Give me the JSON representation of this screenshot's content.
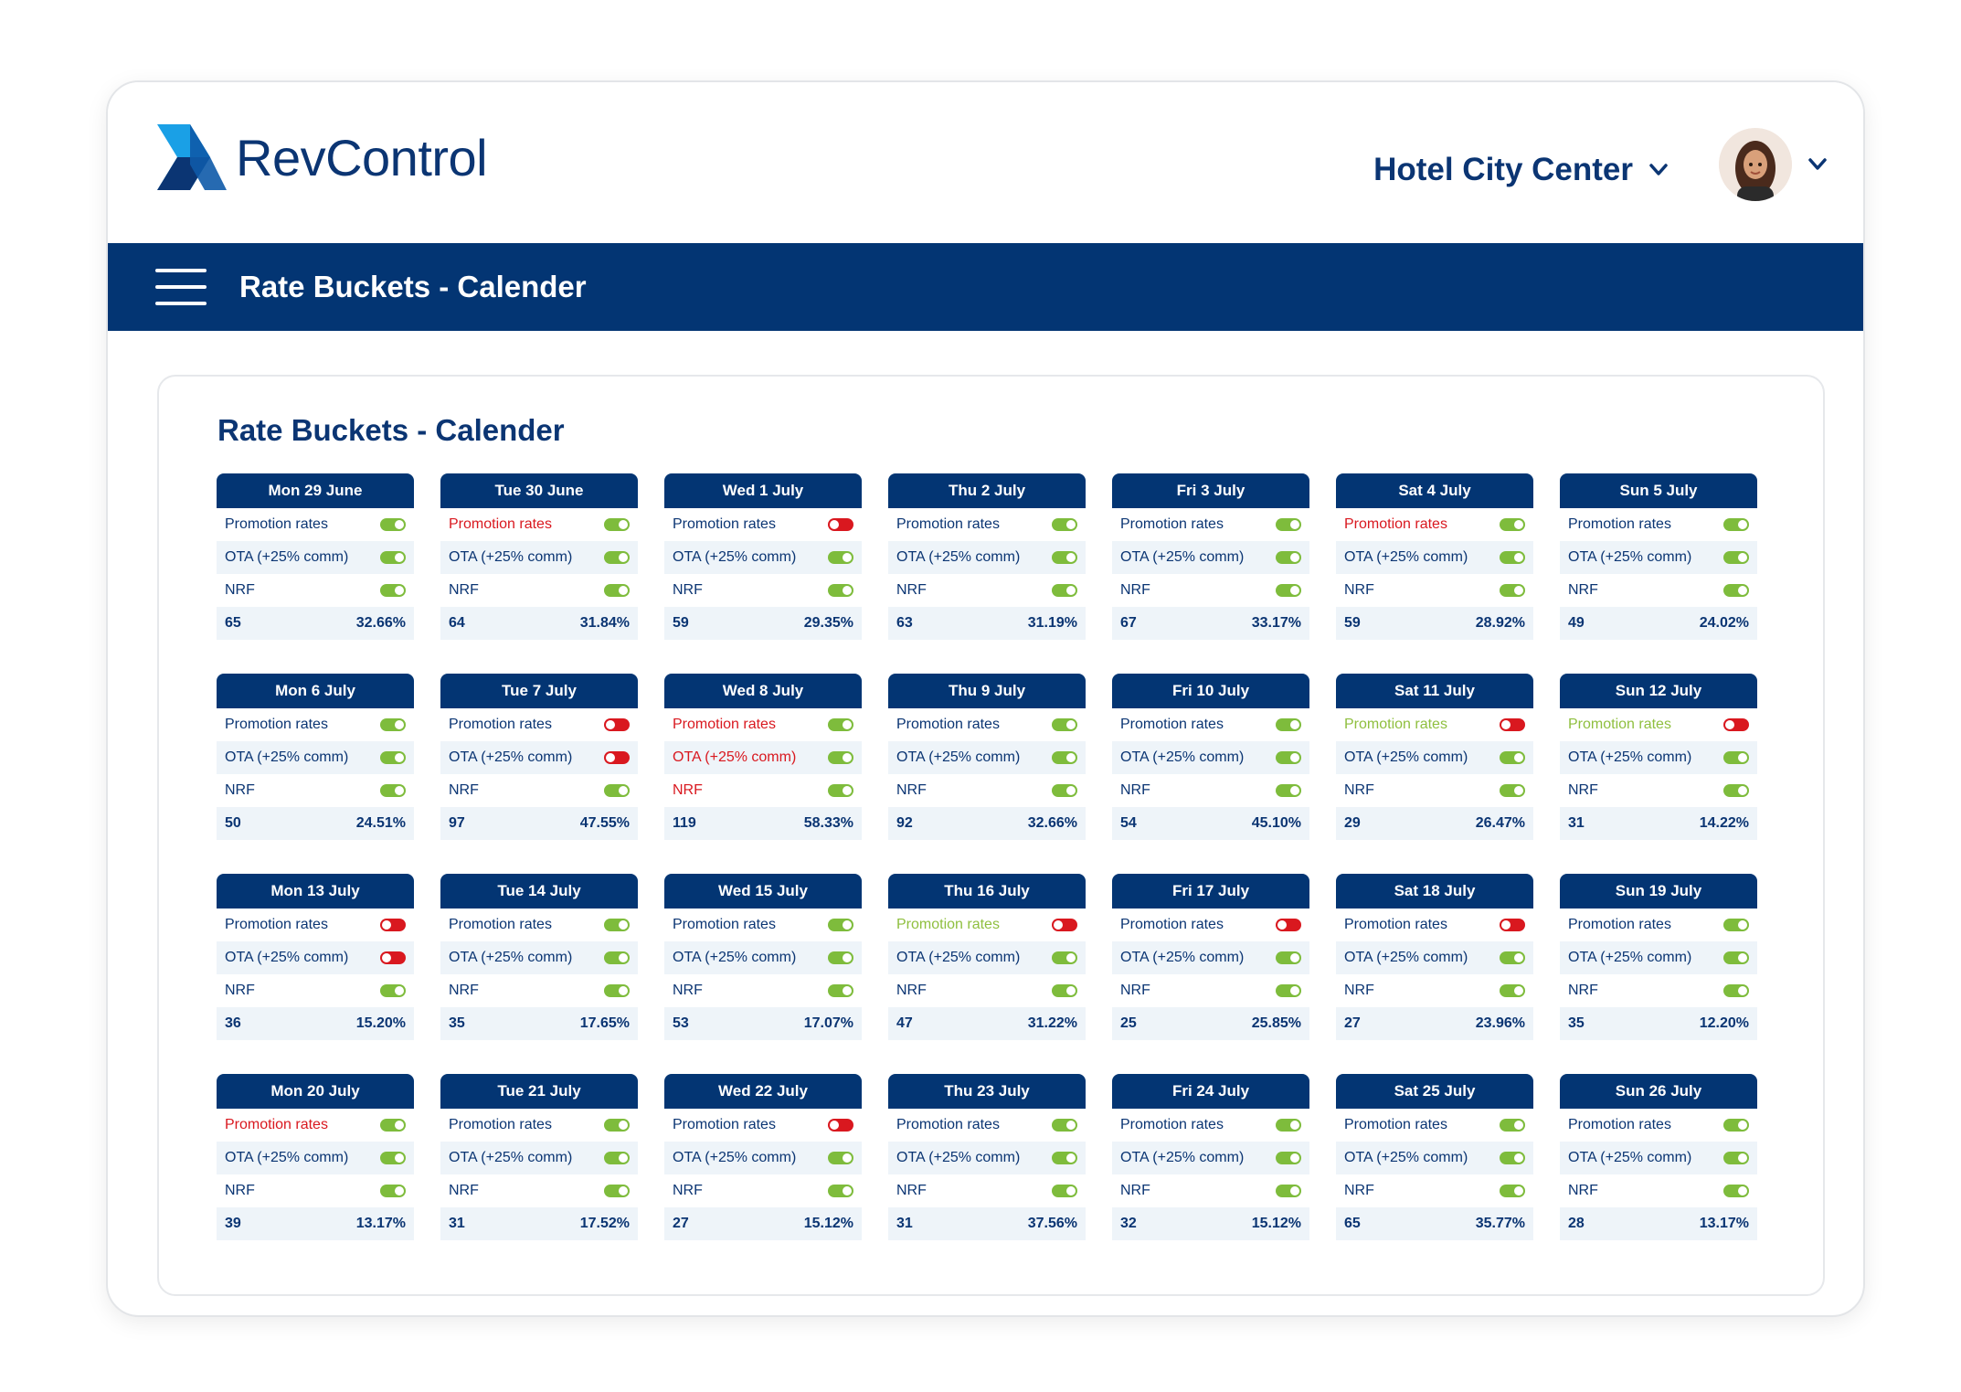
{
  "brand": {
    "name": "RevControl",
    "navy": "#033573",
    "green": "#7ebc3c",
    "red": "#d9181f"
  },
  "header": {
    "hotel": "Hotel City Center",
    "hotel_icon": "chevron-down-icon",
    "avatar_icon": "user-avatar"
  },
  "nav": {
    "title": "Rate Buckets - Calender",
    "menu_icon": "hamburger-icon"
  },
  "panel": {
    "title": "Rate Buckets - Calender"
  },
  "row_labels": [
    "Promotion rates",
    "OTA (+25% comm)",
    "NRF"
  ],
  "days": [
    {
      "date": "Mon 29 June",
      "rows": [
        {
          "on": true,
          "c": ""
        },
        {
          "on": true,
          "c": ""
        },
        {
          "on": true,
          "c": ""
        }
      ],
      "count": "65",
      "pct": "32.66%"
    },
    {
      "date": "Tue 30 June",
      "rows": [
        {
          "on": true,
          "c": "red"
        },
        {
          "on": true,
          "c": ""
        },
        {
          "on": true,
          "c": ""
        }
      ],
      "count": "64",
      "pct": "31.84%"
    },
    {
      "date": "Wed 1 July",
      "rows": [
        {
          "on": false,
          "c": ""
        },
        {
          "on": true,
          "c": ""
        },
        {
          "on": true,
          "c": ""
        }
      ],
      "count": "59",
      "pct": "29.35%"
    },
    {
      "date": "Thu 2 July",
      "rows": [
        {
          "on": true,
          "c": ""
        },
        {
          "on": true,
          "c": ""
        },
        {
          "on": true,
          "c": ""
        }
      ],
      "count": "63",
      "pct": "31.19%"
    },
    {
      "date": "Fri 3 July",
      "rows": [
        {
          "on": true,
          "c": ""
        },
        {
          "on": true,
          "c": ""
        },
        {
          "on": true,
          "c": ""
        }
      ],
      "count": "67",
      "pct": "33.17%"
    },
    {
      "date": "Sat 4 July",
      "rows": [
        {
          "on": true,
          "c": "red"
        },
        {
          "on": true,
          "c": ""
        },
        {
          "on": true,
          "c": ""
        }
      ],
      "count": "59",
      "pct": "28.92%"
    },
    {
      "date": "Sun 5 July",
      "rows": [
        {
          "on": true,
          "c": ""
        },
        {
          "on": true,
          "c": ""
        },
        {
          "on": true,
          "c": ""
        }
      ],
      "count": "49",
      "pct": "24.02%"
    },
    {
      "date": "Mon 6 July",
      "rows": [
        {
          "on": true,
          "c": ""
        },
        {
          "on": true,
          "c": ""
        },
        {
          "on": true,
          "c": ""
        }
      ],
      "count": "50",
      "pct": "24.51%"
    },
    {
      "date": "Tue 7 July",
      "rows": [
        {
          "on": false,
          "c": ""
        },
        {
          "on": false,
          "c": ""
        },
        {
          "on": true,
          "c": ""
        }
      ],
      "count": "97",
      "pct": "47.55%"
    },
    {
      "date": "Wed 8 July",
      "rows": [
        {
          "on": true,
          "c": "red"
        },
        {
          "on": true,
          "c": "red"
        },
        {
          "on": true,
          "c": "red"
        }
      ],
      "count": "119",
      "pct": "58.33%"
    },
    {
      "date": "Thu 9 July",
      "rows": [
        {
          "on": true,
          "c": ""
        },
        {
          "on": true,
          "c": ""
        },
        {
          "on": true,
          "c": ""
        }
      ],
      "count": "92",
      "pct": "32.66%"
    },
    {
      "date": "Fri 10 July",
      "rows": [
        {
          "on": true,
          "c": ""
        },
        {
          "on": true,
          "c": ""
        },
        {
          "on": true,
          "c": ""
        }
      ],
      "count": "54",
      "pct": "45.10%"
    },
    {
      "date": "Sat 11 July",
      "rows": [
        {
          "on": false,
          "c": "green"
        },
        {
          "on": true,
          "c": ""
        },
        {
          "on": true,
          "c": ""
        }
      ],
      "count": "29",
      "pct": "26.47%"
    },
    {
      "date": "Sun 12 July",
      "rows": [
        {
          "on": false,
          "c": "green"
        },
        {
          "on": true,
          "c": ""
        },
        {
          "on": true,
          "c": ""
        }
      ],
      "count": "31",
      "pct": "14.22%"
    },
    {
      "date": "Mon 13 July",
      "rows": [
        {
          "on": false,
          "c": ""
        },
        {
          "on": false,
          "c": ""
        },
        {
          "on": true,
          "c": ""
        }
      ],
      "count": "36",
      "pct": "15.20%"
    },
    {
      "date": "Tue 14 July",
      "rows": [
        {
          "on": true,
          "c": ""
        },
        {
          "on": true,
          "c": ""
        },
        {
          "on": true,
          "c": ""
        }
      ],
      "count": "35",
      "pct": "17.65%"
    },
    {
      "date": "Wed 15 July",
      "rows": [
        {
          "on": true,
          "c": ""
        },
        {
          "on": true,
          "c": ""
        },
        {
          "on": true,
          "c": ""
        }
      ],
      "count": "53",
      "pct": "17.07%"
    },
    {
      "date": "Thu 16 July",
      "rows": [
        {
          "on": false,
          "c": "green"
        },
        {
          "on": true,
          "c": ""
        },
        {
          "on": true,
          "c": ""
        }
      ],
      "count": "47",
      "pct": "31.22%"
    },
    {
      "date": "Fri 17 July",
      "rows": [
        {
          "on": false,
          "c": ""
        },
        {
          "on": true,
          "c": ""
        },
        {
          "on": true,
          "c": ""
        }
      ],
      "count": "25",
      "pct": "25.85%"
    },
    {
      "date": "Sat 18 July",
      "rows": [
        {
          "on": false,
          "c": ""
        },
        {
          "on": true,
          "c": ""
        },
        {
          "on": true,
          "c": ""
        }
      ],
      "count": "27",
      "pct": "23.96%"
    },
    {
      "date": "Sun 19 July",
      "rows": [
        {
          "on": true,
          "c": ""
        },
        {
          "on": true,
          "c": ""
        },
        {
          "on": true,
          "c": ""
        }
      ],
      "count": "35",
      "pct": "12.20%"
    },
    {
      "date": "Mon 20 July",
      "rows": [
        {
          "on": true,
          "c": "red"
        },
        {
          "on": true,
          "c": ""
        },
        {
          "on": true,
          "c": ""
        }
      ],
      "count": "39",
      "pct": "13.17%"
    },
    {
      "date": "Tue 21 July",
      "rows": [
        {
          "on": true,
          "c": ""
        },
        {
          "on": true,
          "c": ""
        },
        {
          "on": true,
          "c": ""
        }
      ],
      "count": "31",
      "pct": "17.52%"
    },
    {
      "date": "Wed 22 July",
      "rows": [
        {
          "on": false,
          "c": ""
        },
        {
          "on": true,
          "c": ""
        },
        {
          "on": true,
          "c": ""
        }
      ],
      "count": "27",
      "pct": "15.12%"
    },
    {
      "date": "Thu 23 July",
      "rows": [
        {
          "on": true,
          "c": ""
        },
        {
          "on": true,
          "c": ""
        },
        {
          "on": true,
          "c": ""
        }
      ],
      "count": "31",
      "pct": "37.56%"
    },
    {
      "date": "Fri 24 July",
      "rows": [
        {
          "on": true,
          "c": ""
        },
        {
          "on": true,
          "c": ""
        },
        {
          "on": true,
          "c": ""
        }
      ],
      "count": "32",
      "pct": "15.12%"
    },
    {
      "date": "Sat 25 July",
      "rows": [
        {
          "on": true,
          "c": ""
        },
        {
          "on": true,
          "c": ""
        },
        {
          "on": true,
          "c": ""
        }
      ],
      "count": "65",
      "pct": "35.77%"
    },
    {
      "date": "Sun 26 July",
      "rows": [
        {
          "on": true,
          "c": ""
        },
        {
          "on": true,
          "c": ""
        },
        {
          "on": true,
          "c": ""
        }
      ],
      "count": "28",
      "pct": "13.17%"
    }
  ]
}
